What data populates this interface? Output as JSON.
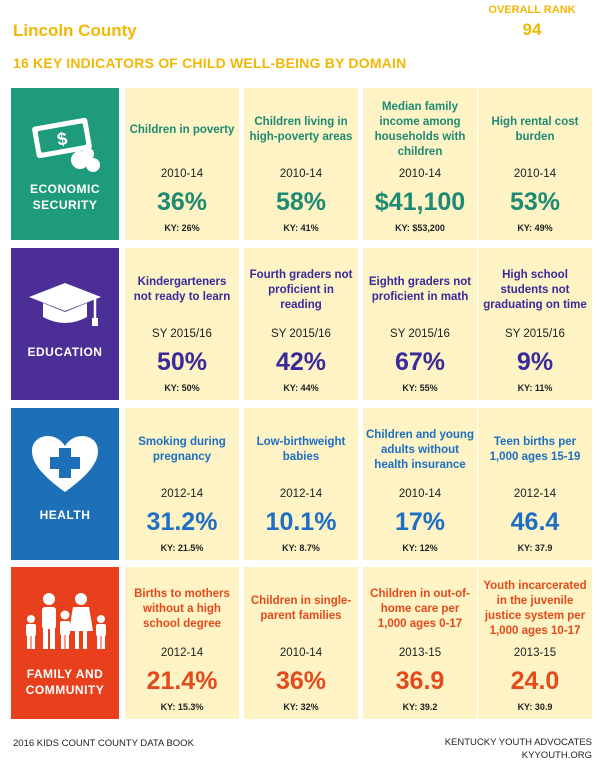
{
  "header": {
    "county": "Lincoln County",
    "rank_label": "OVERALL RANK",
    "rank_value": "94",
    "subtitle": "16 KEY INDICATORS OF CHILD WELL-BEING BY DOMAIN"
  },
  "colors": {
    "header_yellow": "#f2b705",
    "card_background": "#fdf3c4"
  },
  "domains": [
    {
      "name_lines": [
        "ECONOMIC",
        "SECURITY"
      ],
      "color": "#1e9b7a",
      "text_color": "#1e8a72",
      "icon": "money-icon",
      "indicators": [
        {
          "title": "Children in poverty",
          "period": "2010-14",
          "value": "36%",
          "ky": "KY: 26%"
        },
        {
          "title": "Children living in high-poverty areas",
          "period": "2010-14",
          "value": "58%",
          "ky": "KY: 41%"
        },
        {
          "title": "Median family income among households with children",
          "period": "2010-14",
          "value": "$41,100",
          "ky": "KY: $53,200"
        },
        {
          "title": "High rental cost burden",
          "period": "2010-14",
          "value": "53%",
          "ky": "KY: 49%"
        }
      ]
    },
    {
      "name_lines": [
        "EDUCATION"
      ],
      "color": "#4b2e96",
      "text_color": "#3a2a9a",
      "icon": "graduation-cap-icon",
      "indicators": [
        {
          "title": "Kindergarteners not ready to learn",
          "period": "SY 2015/16",
          "value": "50%",
          "ky": "KY: 50%"
        },
        {
          "title": "Fourth graders not proficient in reading",
          "period": "SY 2015/16",
          "value": "42%",
          "ky": "KY: 44%"
        },
        {
          "title": "Eighth graders not proficient in math",
          "period": "SY 2015/16",
          "value": "67%",
          "ky": "KY: 55%"
        },
        {
          "title": "High school students not graduating on time",
          "period": "SY 2015/16",
          "value": "9%",
          "ky": "KY: 11%"
        }
      ]
    },
    {
      "name_lines": [
        "HEALTH"
      ],
      "color": "#1d6fb8",
      "text_color": "#1d6fc4",
      "icon": "heart-cross-icon",
      "indicators": [
        {
          "title": "Smoking during pregnancy",
          "period": "2012-14",
          "value": "31.2%",
          "ky": "KY: 21.5%"
        },
        {
          "title": "Low-birthweight babies",
          "period": "2012-14",
          "value": "10.1%",
          "ky": "KY: 8.7%"
        },
        {
          "title": "Children and young adults without health insurance",
          "period": "2010-14",
          "value": "17%",
          "ky": "KY: 12%"
        },
        {
          "title": "Teen births per 1,000 ages 15-19",
          "period": "2012-14",
          "value": "46.4",
          "ky": "KY: 37.9"
        }
      ]
    },
    {
      "name_lines": [
        "FAMILY AND",
        "COMMUNITY"
      ],
      "color": "#e8401c",
      "text_color": "#e34a1c",
      "icon": "family-icon",
      "indicators": [
        {
          "title": "Births to mothers without a high school degree",
          "period": "2012-14",
          "value": "21.4%",
          "ky": "KY: 15.3%"
        },
        {
          "title": "Children in single-parent families",
          "period": "2010-14",
          "value": "36%",
          "ky": "KY: 32%"
        },
        {
          "title": "Children in out-of-home care per 1,000 ages 0-17",
          "period": "2013-15",
          "value": "36.9",
          "ky": "KY: 39.2"
        },
        {
          "title": "Youth incarcerated in the juvenile justice system per 1,000 ages 10-17",
          "period": "2013-15",
          "value": "24.0",
          "ky": "KY: 30.9"
        }
      ]
    }
  ],
  "footer": {
    "left": "2016 KIDS COUNT COUNTY DATA BOOK",
    "right_line1": "KENTUCKY YOUTH ADVOCATES",
    "right_line2": "KYYOUTH.ORG"
  }
}
